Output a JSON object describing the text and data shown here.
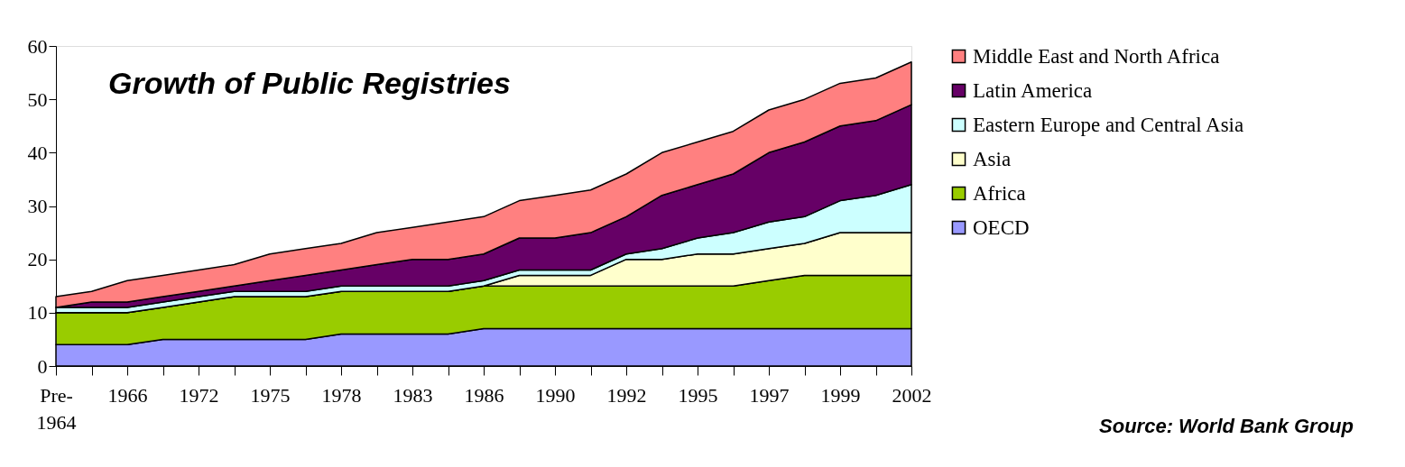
{
  "chart_data": {
    "type": "area",
    "stacked": true,
    "title": "Growth of Public Registries",
    "categories": [
      "Pre-1964",
      null,
      "1966",
      null,
      "1972",
      null,
      "1975",
      null,
      "1978",
      null,
      "1983",
      null,
      "1986",
      null,
      "1990",
      null,
      "1992",
      null,
      "1995",
      null,
      "1997",
      null,
      "1999",
      null,
      "2002"
    ],
    "series": [
      {
        "name": "OECD",
        "color": "#9999ff",
        "values": [
          4,
          4,
          4,
          5,
          5,
          5,
          5,
          5,
          6,
          6,
          6,
          6,
          7,
          7,
          7,
          7,
          7,
          7,
          7,
          7,
          7,
          7,
          7,
          7,
          7
        ]
      },
      {
        "name": "Africa",
        "color": "#99cc00",
        "values": [
          6,
          6,
          6,
          6,
          7,
          8,
          8,
          8,
          8,
          8,
          8,
          8,
          8,
          8,
          8,
          8,
          8,
          8,
          8,
          8,
          9,
          10,
          10,
          10,
          10
        ]
      },
      {
        "name": "Asia",
        "color": "#ffffcc",
        "values": [
          0,
          0,
          0,
          0,
          0,
          0,
          0,
          0,
          0,
          0,
          0,
          0,
          0,
          2,
          2,
          2,
          5,
          5,
          6,
          6,
          6,
          6,
          8,
          8,
          8
        ]
      },
      {
        "name": "Eastern Europe and Central Asia",
        "color": "#ccffff",
        "values": [
          1,
          1,
          1,
          1,
          1,
          1,
          1,
          1,
          1,
          1,
          1,
          1,
          1,
          1,
          1,
          1,
          1,
          2,
          3,
          4,
          5,
          5,
          6,
          7,
          9
        ]
      },
      {
        "name": "Latin America",
        "color": "#660066",
        "values": [
          0,
          1,
          1,
          1,
          1,
          1,
          2,
          3,
          3,
          4,
          5,
          5,
          5,
          6,
          6,
          7,
          7,
          10,
          10,
          11,
          13,
          14,
          14,
          14,
          15
        ]
      },
      {
        "name": "Middle East and North Africa",
        "color": "#ff8080",
        "values": [
          2,
          2,
          4,
          4,
          4,
          4,
          5,
          5,
          5,
          6,
          6,
          7,
          7,
          7,
          8,
          8,
          8,
          8,
          8,
          8,
          8,
          8,
          8,
          8,
          8
        ]
      }
    ],
    "ylim": [
      0,
      60
    ],
    "yticks": [
      0,
      10,
      20,
      30,
      40,
      50,
      60
    ],
    "grid": false,
    "legend": "right",
    "annotations": [
      "Source: World Bank Group"
    ]
  }
}
